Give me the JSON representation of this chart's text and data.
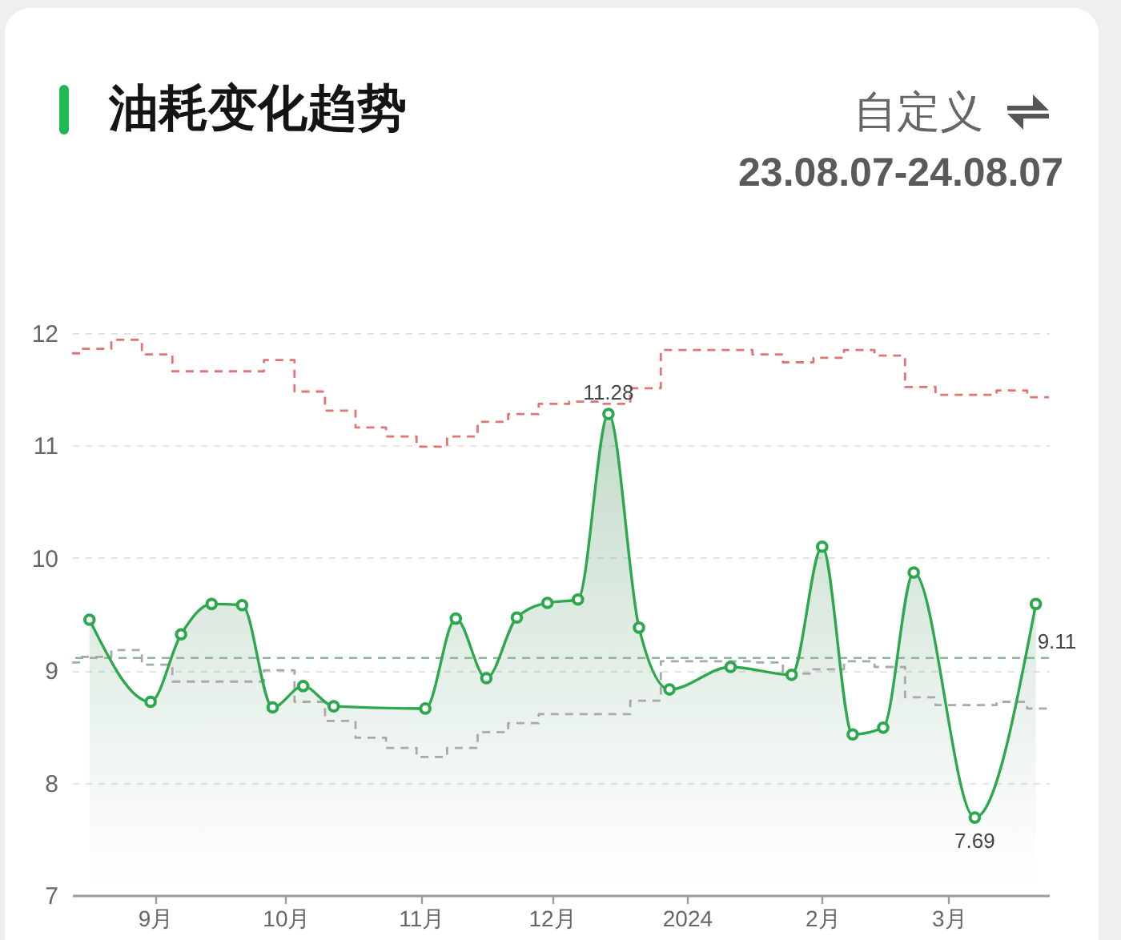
{
  "chart_data": {
    "title": "油耗变化趋势",
    "subtitle": "23.08.07-24.08.07",
    "annotations": [
      "自定义"
    ],
    "type": "area",
    "xlim": [
      "2023-08-13",
      "2024-03-24"
    ],
    "xticks": [
      {
        "value": "2023-09-01",
        "label": "9月"
      },
      {
        "value": "2023-10-01",
        "label": "10月"
      },
      {
        "value": "2023-11-01",
        "label": "11月"
      },
      {
        "value": "2023-12-01",
        "label": "12月"
      },
      {
        "value": "2024-01-01",
        "label": "2024"
      },
      {
        "value": "2024-02-01",
        "label": "2月"
      },
      {
        "value": "2024-03-01",
        "label": "3月"
      }
    ],
    "ylim": [
      7,
      12
    ],
    "yticks": [
      7,
      8,
      9,
      10,
      11,
      12
    ],
    "grid": "y",
    "marker": "circle",
    "series": [
      {
        "color": "#2ea84f",
        "x": [
          "2023-08-17",
          "2023-08-31",
          "2023-09-07",
          "2023-09-14",
          "2023-09-21",
          "2023-09-28",
          "2023-10-05",
          "2023-10-12",
          "2023-11-02",
          "2023-11-09",
          "2023-11-16",
          "2023-11-23",
          "2023-11-30",
          "2023-12-07",
          "2023-12-14",
          "2023-12-21",
          "2023-12-28",
          "2024-01-11",
          "2024-01-25",
          "2024-02-01",
          "2024-02-08",
          "2024-02-15",
          "2024-02-22",
          "2024-03-07",
          "2024-03-21"
        ],
        "values": [
          9.45,
          8.72,
          9.32,
          9.59,
          9.58,
          8.67,
          8.86,
          8.68,
          8.66,
          9.46,
          8.93,
          9.47,
          9.6,
          9.63,
          11.28,
          9.38,
          8.83,
          9.03,
          8.96,
          10.1,
          8.43,
          8.49,
          9.87,
          7.69,
          9.59
        ],
        "value_labels": [
          null,
          null,
          null,
          null,
          null,
          null,
          null,
          null,
          null,
          null,
          null,
          null,
          null,
          null,
          "11.28",
          null,
          null,
          null,
          null,
          null,
          null,
          null,
          null,
          "7.69",
          null
        ]
      },
      {
        "type": "step",
        "color": "#e27474",
        "line_style": "dashed",
        "marker": "none",
        "x": [
          "2023-08-13",
          "2023-08-15",
          "2023-08-22",
          "2023-08-29",
          "2023-09-05",
          "2023-09-26",
          "2023-10-03",
          "2023-10-10",
          "2023-10-17",
          "2023-10-24",
          "2023-10-31",
          "2023-11-07",
          "2023-11-14",
          "2023-11-21",
          "2023-11-28",
          "2023-12-05",
          "2023-12-12",
          "2023-12-19",
          "2023-12-26",
          "2024-01-16",
          "2024-01-23",
          "2024-01-30",
          "2024-02-06",
          "2024-02-13",
          "2024-02-20",
          "2024-02-27",
          "2024-03-12",
          "2024-03-19",
          "2024-03-24"
        ],
        "values": [
          11.82,
          11.86,
          11.94,
          11.81,
          11.66,
          11.76,
          11.48,
          11.31,
          11.16,
          11.08,
          10.99,
          11.08,
          11.21,
          11.28,
          11.37,
          11.39,
          11.37,
          11.51,
          11.85,
          11.81,
          11.74,
          11.78,
          11.85,
          11.8,
          11.52,
          11.45,
          11.49,
          11.43,
          11.43
        ]
      },
      {
        "type": "step",
        "color": "#a9a9a9",
        "line_style": "dashed",
        "marker": "none",
        "x": [
          "2023-08-13",
          "2023-08-15",
          "2023-08-22",
          "2023-08-29",
          "2023-09-05",
          "2023-09-26",
          "2023-10-03",
          "2023-10-10",
          "2023-10-17",
          "2023-10-24",
          "2023-10-31",
          "2023-11-07",
          "2023-11-14",
          "2023-11-21",
          "2023-11-28",
          "2023-12-05",
          "2023-12-12",
          "2023-12-19",
          "2023-12-26",
          "2024-01-16",
          "2024-01-23",
          "2024-01-30",
          "2024-02-06",
          "2024-02-13",
          "2024-02-20",
          "2024-02-27",
          "2024-03-12",
          "2024-03-19",
          "2024-03-24"
        ],
        "values": [
          9.07,
          9.12,
          9.18,
          9.05,
          8.9,
          9.0,
          8.72,
          8.55,
          8.4,
          8.31,
          8.23,
          8.31,
          8.45,
          8.53,
          8.61,
          8.61,
          8.61,
          8.73,
          9.08,
          9.07,
          8.97,
          9.01,
          9.08,
          9.03,
          8.76,
          8.69,
          8.72,
          8.66,
          8.66
        ]
      }
    ],
    "ref_lines": [
      {
        "axis": "y",
        "value": 9.11,
        "label": "9.11",
        "color": "#86b896",
        "line_style": "dashed"
      }
    ]
  }
}
